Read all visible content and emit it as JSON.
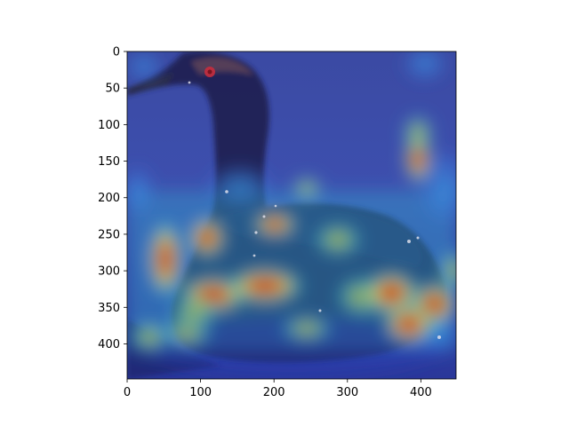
{
  "figure": {
    "content": "heatmap overlay on a photo of a grebe on water",
    "image_size": 448,
    "x_ticks": [
      "0",
      "100",
      "200",
      "300",
      "400"
    ],
    "y_ticks": [
      "0",
      "50",
      "100",
      "150",
      "200",
      "250",
      "300",
      "350",
      "400"
    ],
    "colormap": "jet"
  },
  "chart_data": {
    "type": "heatmap",
    "title": "",
    "xlabel": "",
    "ylabel": "",
    "xlim": [
      0,
      448
    ],
    "ylim": [
      448,
      0
    ],
    "x_tick_values": [
      0,
      100,
      200,
      300,
      400
    ],
    "y_tick_values": [
      0,
      50,
      100,
      150,
      200,
      250,
      300,
      350,
      400
    ],
    "hotspots": [
      {
        "x": 45,
        "y": 290,
        "intensity": 0.9
      },
      {
        "x": 110,
        "y": 262,
        "intensity": 0.9
      },
      {
        "x": 205,
        "y": 238,
        "intensity": 1.0
      },
      {
        "x": 290,
        "y": 260,
        "intensity": 0.6
      },
      {
        "x": 120,
        "y": 330,
        "intensity": 0.9
      },
      {
        "x": 160,
        "y": 315,
        "intensity": 0.9
      },
      {
        "x": 200,
        "y": 320,
        "intensity": 0.95
      },
      {
        "x": 150,
        "y": 355,
        "intensity": 0.75
      },
      {
        "x": 320,
        "y": 335,
        "intensity": 0.7
      },
      {
        "x": 355,
        "y": 330,
        "intensity": 0.9
      },
      {
        "x": 415,
        "y": 345,
        "intensity": 1.0
      },
      {
        "x": 380,
        "y": 368,
        "intensity": 0.85
      },
      {
        "x": 395,
        "y": 160,
        "intensity": 0.75
      },
      {
        "x": 395,
        "y": 125,
        "intensity": 0.55
      },
      {
        "x": 80,
        "y": 385,
        "intensity": 0.55
      },
      {
        "x": 30,
        "y": 390,
        "intensity": 0.5
      },
      {
        "x": 245,
        "y": 380,
        "intensity": 0.5
      },
      {
        "x": 285,
        "y": 185,
        "intensity": 0.45
      },
      {
        "x": 15,
        "y": 190,
        "intensity": 0.45
      },
      {
        "x": 440,
        "y": 300,
        "intensity": 0.6
      }
    ]
  }
}
